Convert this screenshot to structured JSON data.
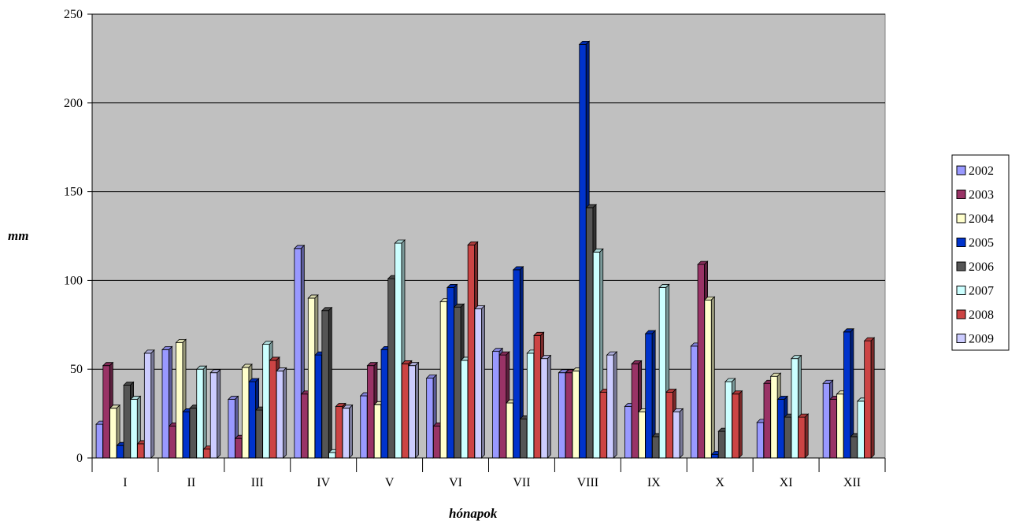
{
  "chart_data": {
    "type": "bar",
    "xlabel": "hónapok",
    "ylabel": "mm",
    "ylim": [
      0,
      250
    ],
    "yticks": [
      0,
      50,
      100,
      150,
      200,
      250
    ],
    "categories": [
      "I",
      "II",
      "III",
      "IV",
      "V",
      "VI",
      "VII",
      "VIII",
      "IX",
      "X",
      "XI",
      "XII"
    ],
    "grid": true,
    "legend_position": "right",
    "series": [
      {
        "name": "2002",
        "color": "#9999ff",
        "values": [
          19,
          61,
          33,
          118,
          35,
          45,
          60,
          48,
          29,
          63,
          20,
          42
        ]
      },
      {
        "name": "2003",
        "color": "#993366",
        "values": [
          52,
          18,
          11,
          36,
          52,
          18,
          58,
          48,
          53,
          109,
          42,
          33
        ]
      },
      {
        "name": "2004",
        "color": "#ffffcc",
        "values": [
          28,
          65,
          51,
          90,
          30,
          88,
          31,
          49,
          26,
          89,
          46,
          36
        ]
      },
      {
        "name": "2005",
        "color": "#0033cc",
        "values": [
          7,
          26,
          43,
          58,
          61,
          96,
          106,
          233,
          70,
          2,
          33,
          71
        ]
      },
      {
        "name": "2006",
        "color": "#555555",
        "values": [
          41,
          28,
          27,
          83,
          101,
          85,
          22,
          141,
          12,
          15,
          23,
          12
        ]
      },
      {
        "name": "2007",
        "color": "#ccffff",
        "values": [
          33,
          50,
          64,
          3,
          121,
          55,
          59,
          116,
          96,
          43,
          56,
          32
        ]
      },
      {
        "name": "2008",
        "color": "#cc4444",
        "values": [
          8,
          5,
          55,
          29,
          53,
          120,
          69,
          37,
          37,
          36,
          23,
          66
        ]
      },
      {
        "name": "2009",
        "color": "#ccccff",
        "values": [
          59,
          48,
          49,
          28,
          52,
          84,
          56,
          58,
          26,
          null,
          null,
          null
        ]
      }
    ]
  }
}
